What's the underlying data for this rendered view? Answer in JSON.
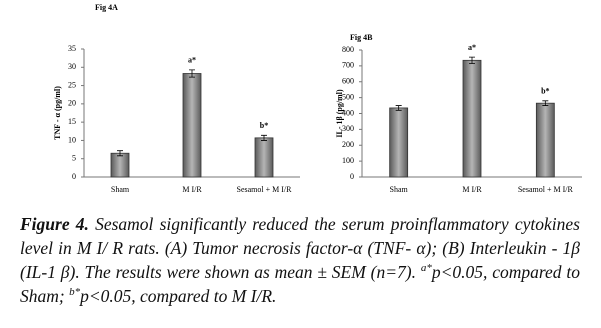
{
  "chart_data": [
    {
      "type": "bar",
      "title": "Fig 4A",
      "y_label": "TNF - α (pg/ml)",
      "categories": [
        "Sham",
        "M I/R",
        "Sesamol + M I/R"
      ],
      "values": [
        6.5,
        28.3,
        10.7
      ],
      "errors": [
        0.7,
        1.0,
        0.7
      ],
      "annotations": [
        null,
        "a*",
        "b*"
      ],
      "color": "#8c8c8c",
      "ylim": [
        0,
        35
      ],
      "yticks": [
        0,
        5,
        10,
        15,
        20,
        25,
        30,
        35
      ]
    },
    {
      "type": "bar",
      "title": "Fig 4B",
      "y_label": "IL- 1β (pg/ml)",
      "categories": [
        "Sham",
        "M I/R",
        "Sesamol + M I/R"
      ],
      "values": [
        435,
        735,
        465
      ],
      "errors": [
        15,
        20,
        15
      ],
      "annotations": [
        null,
        "a*",
        "b*"
      ],
      "color": "#8c8c8c",
      "ylim": [
        0,
        800
      ],
      "yticks": [
        0,
        100,
        200,
        300,
        400,
        500,
        600,
        700,
        800
      ]
    }
  ],
  "caption": {
    "label": "Figure 4.",
    "text": " Sesamol significantly reduced the serum proinflammatory cytokines level in M I/ R rats. (A) Tumor necrosis factor-α (TNF- α); (B) Interleukin - 1β (IL-1 β). The results were shown as mean ± SEM (n=7). ",
    "sup_a": "a*",
    "note_a": "p<0.05, compared to Sham; ",
    "sup_b": "b*",
    "note_b": "p<0.05, compared to M I/R."
  }
}
